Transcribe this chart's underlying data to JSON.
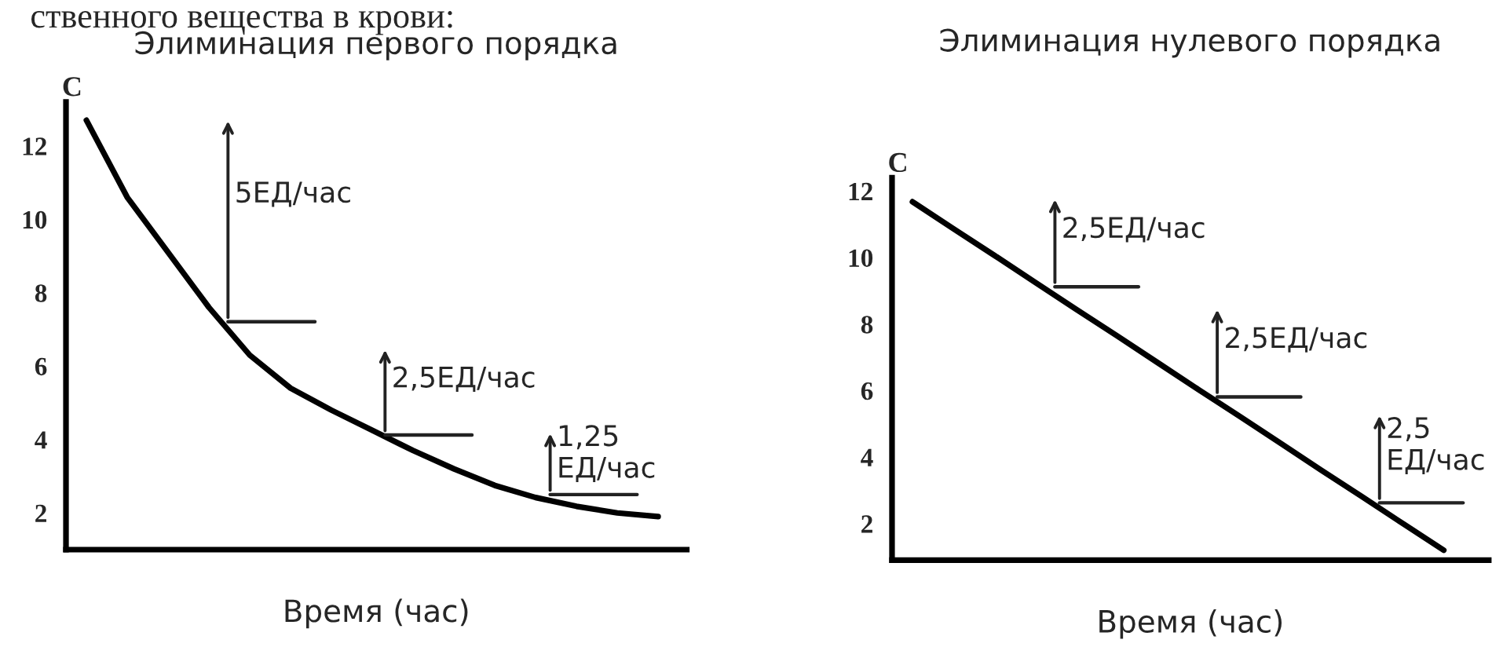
{
  "chart_data": [
    {
      "type": "line",
      "title": "Элиминация первого порядка",
      "xlabel": "Время (час)",
      "ylabel": "C",
      "categories": [
        null,
        null,
        null,
        null,
        null,
        null,
        null,
        null,
        null,
        null,
        null,
        null,
        null,
        null,
        null
      ],
      "series": [
        {
          "color": "#000000",
          "values": [
            12.7,
            10.6,
            9.1,
            7.6,
            6.3,
            5.4,
            4.8,
            4.25,
            3.7,
            3.2,
            2.75,
            2.42,
            2.18,
            2.0,
            1.9
          ]
        }
      ],
      "ylim": [
        1,
        13.2
      ],
      "yticks": [
        2,
        4,
        6,
        8,
        10,
        12
      ],
      "tick_labels": "y",
      "annotations": [
        "ственного вещества в крови:",
        "5ЕД/час",
        "2,5ЕД/час",
        "1,25\nЕД/час"
      ]
    },
    {
      "type": "line",
      "title": "Элиминация нулевого порядка",
      "xlabel": "Время (час)",
      "ylabel": "C",
      "categories": [
        null,
        null,
        null,
        null,
        null,
        null,
        null,
        null,
        null,
        null,
        null,
        null,
        null,
        null
      ],
      "series": [
        {
          "color": "#000000",
          "values": [
            11.68,
            10.87,
            10.07,
            9.26,
            8.45,
            7.65,
            6.84,
            6.03,
            5.23,
            4.42,
            3.61,
            2.81,
            2.0,
            1.2
          ]
        }
      ],
      "ylim": [
        0.9,
        12.4
      ],
      "yticks": [
        2,
        4,
        6,
        8,
        10,
        12
      ],
      "tick_labels": "y",
      "annotations": [
        "2,5ЕД/час",
        "2,5ЕД/час",
        "2,5\nЕД/час"
      ]
    }
  ]
}
